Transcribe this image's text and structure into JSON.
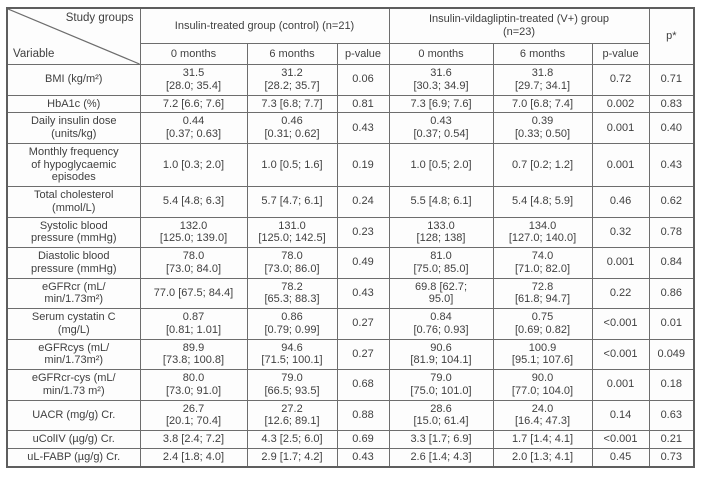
{
  "colors": {
    "border": "#6d6d6d",
    "outer_border": "#5e5e5e",
    "text": "#404040",
    "background": "#ffffff"
  },
  "header": {
    "corner_top": "Study groups",
    "corner_bottom": "Variable",
    "groups": [
      "Insulin-treated group (control) (n=21)",
      "Insulin-vildagliptin-treated (V+) group\n(n=23)"
    ],
    "p_star": "p*",
    "subcols": [
      "0 months",
      "6 months",
      "p-value",
      "0 months",
      "6 months",
      "p-value"
    ]
  },
  "rows": [
    {
      "variable": "BMI (kg/m²)",
      "values": [
        "31.5\n[28.0; 35.4]",
        "31.2\n[28.2; 35.7]",
        "0.06",
        "31.6\n[30.3; 34.9]",
        "31.8\n[29.7; 34.1]",
        "0.72",
        "0.71"
      ]
    },
    {
      "variable": "HbA1c (%)",
      "values": [
        "7.2 [6.6; 7.6]",
        "7.3 [6.8; 7.7]",
        "0.81",
        "7.3 [6.9; 7.6]",
        "7.0 [6.8; 7.4]",
        "0.002",
        "0.83"
      ]
    },
    {
      "variable": "Daily insulin dose\n(units/kg)",
      "values": [
        "0.44\n[0.37; 0.63]",
        "0.46\n[0.31; 0.62]",
        "0.43",
        "0.43\n[0.37; 0.54]",
        "0.39\n[0.33; 0.50]",
        "0.001",
        "0.40"
      ]
    },
    {
      "variable": "Monthly frequency\nof hypoglycaemic\nepisodes",
      "values": [
        "1.0 [0.3; 2.0]",
        "1.0 [0.5; 1.6]",
        "0.19",
        "1.0 [0.5; 2.0]",
        "0.7 [0.2; 1.2]",
        "0.001",
        "0.43"
      ]
    },
    {
      "variable": "Total cholesterol\n(mmol/L)",
      "values": [
        "5.4 [4.8; 6.3]",
        "5.7 [4.7; 6.1]",
        "0.24",
        "5.5 [4.8; 6.1]",
        "5.4 [4.8; 5.9]",
        "0.46",
        "0.62"
      ]
    },
    {
      "variable": "Systolic blood\npressure (mmHg)",
      "values": [
        "132.0\n[125.0; 139.0]",
        "131.0\n[125.0; 142.5]",
        "0.23",
        "133.0\n[128; 138]",
        "134.0\n[127.0; 140.0]",
        "0.32",
        "0.78"
      ]
    },
    {
      "variable": "Diastolic blood\npressure (mmHg)",
      "values": [
        "78.0\n[73.0; 84.0]",
        "78.0\n[73.0; 86.0]",
        "0.49",
        "81.0\n[75.0; 85.0]",
        "74.0\n[71.0; 82.0]",
        "0.001",
        "0.84"
      ]
    },
    {
      "variable": "eGFRcr (mL/\nmin/1.73m²)",
      "values": [
        "77.0 [67.5; 84.4]",
        "78.2\n[65.3; 88.3]",
        "0.43",
        "69.8 [62.7;\n95.0]",
        "72.8\n[61.8; 94.7]",
        "0.22",
        "0.86"
      ]
    },
    {
      "variable": "Serum cystatin C\n(mg/L)",
      "values": [
        "0.87\n[0.81; 1.01]",
        "0.86\n[0.79; 0.99]",
        "0.27",
        "0.84\n[0.76; 0.93]",
        "0.75\n[0.69; 0.82]",
        "<0.001",
        "0.01"
      ]
    },
    {
      "variable": "eGFRcys (mL/\nmin/1.73m²)",
      "values": [
        "89.9\n[73.8; 100.8]",
        "94.6\n[71.5; 100.1]",
        "0.27",
        "90.6\n[81.9; 104.1]",
        "100.9\n[95.1; 107.6]",
        "<0.001",
        "0.049"
      ]
    },
    {
      "variable": "eGFRcr-cys (mL/\nmin/1.73 m²)",
      "values": [
        "80.0\n[73.0; 91.0]",
        "79.0\n[66.5; 93.5]",
        "0.68",
        "79.0\n[75.0; 101.0]",
        "90.0\n[77.0; 104.0]",
        "0.001",
        "0.18"
      ]
    },
    {
      "variable": "UACR (mg/g) Cr.",
      "values": [
        "26.7\n[20.1; 70.4]",
        "27.2\n[12.6; 89.1]",
        "0.88",
        "28.6\n[15.0; 61.4]",
        "24.0\n[16.4; 47.3]",
        "0.14",
        "0.63"
      ]
    },
    {
      "variable": "uColIV (µg/g) Cr.",
      "values": [
        "3.8 [2.4; 7.2]",
        "4.3 [2.5; 6.0]",
        "0.69",
        "3.3 [1.7; 6.9]",
        "1.7 [1.4; 4.1]",
        "<0.001",
        "0.21"
      ]
    },
    {
      "variable": "uL-FABP (µg/g) Cr.",
      "values": [
        "2.4 [1.8; 4.0]",
        "2.9 [1.7; 4.2]",
        "0.43",
        "2.6 [1.4; 4.3]",
        "2.0 [1.3; 4.1]",
        "0.45",
        "0.73"
      ]
    }
  ]
}
